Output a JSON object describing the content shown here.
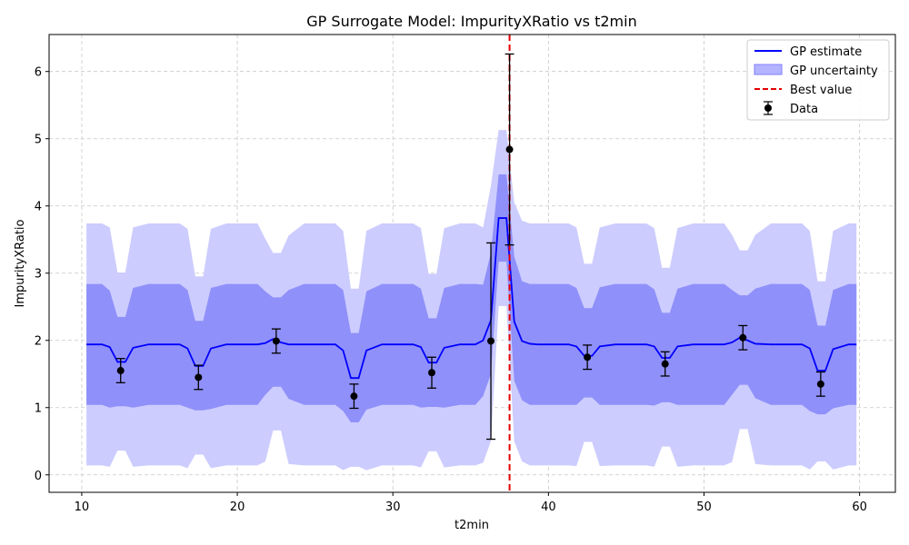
{
  "chart_data": {
    "type": "line",
    "title": "GP Surrogate Model: ImpurityXRatio vs t2min",
    "xlabel": "t2min",
    "ylabel": "ImpurityXRatio",
    "xlim": [
      7.9,
      62.3
    ],
    "ylim": [
      -0.26,
      6.55
    ],
    "xticks": [
      10,
      20,
      30,
      40,
      50,
      60
    ],
    "yticks": [
      0,
      1,
      2,
      3,
      4,
      5,
      6
    ],
    "grid": true,
    "legend_position": "top-right",
    "best_value_x": 37.5,
    "legend": [
      "GP estimate",
      "GP uncertainty",
      "Best value",
      "Data"
    ],
    "colors": {
      "estimate": "#0000ff",
      "band_outer": "#ccccff",
      "band_inner": "#9090fa",
      "best": "#e50000",
      "data": "#000000",
      "grid": "#c8c8c8"
    },
    "gp_x": [
      10.3,
      11.3,
      11.8,
      12.3,
      12.8,
      13.3,
      14.3,
      15.3,
      16.3,
      16.8,
      17.3,
      17.8,
      18.3,
      19.3,
      20.3,
      21.3,
      21.8,
      22.3,
      22.8,
      23.3,
      24.3,
      25.3,
      26.3,
      26.8,
      27.3,
      27.8,
      28.3,
      29.3,
      30.3,
      31.3,
      31.8,
      32.3,
      32.8,
      33.3,
      34.3,
      35.3,
      35.8,
      36.3,
      36.8,
      37.3,
      37.8,
      38.3,
      38.8,
      39.3,
      40.3,
      41.3,
      41.8,
      42.3,
      42.8,
      43.3,
      44.3,
      45.3,
      46.3,
      46.8,
      47.3,
      47.8,
      48.3,
      49.3,
      50.3,
      51.3,
      51.8,
      52.3,
      52.8,
      53.3,
      54.3,
      55.3,
      56.3,
      56.8,
      57.3,
      57.8,
      58.3,
      59.3,
      59.8
    ],
    "gp_mean": [
      1.94,
      1.94,
      1.9,
      1.68,
      1.68,
      1.89,
      1.94,
      1.94,
      1.94,
      1.88,
      1.62,
      1.62,
      1.88,
      1.94,
      1.94,
      1.94,
      1.96,
      2.02,
      1.97,
      1.94,
      1.94,
      1.94,
      1.94,
      1.85,
      1.44,
      1.44,
      1.85,
      1.94,
      1.94,
      1.94,
      1.9,
      1.67,
      1.67,
      1.89,
      1.94,
      1.94,
      2.0,
      2.3,
      3.82,
      3.82,
      2.28,
      1.99,
      1.95,
      1.94,
      1.94,
      1.94,
      1.91,
      1.77,
      1.77,
      1.91,
      1.94,
      1.94,
      1.94,
      1.91,
      1.74,
      1.74,
      1.91,
      1.94,
      1.94,
      1.94,
      1.97,
      2.04,
      2.0,
      1.95,
      1.94,
      1.94,
      1.94,
      1.88,
      1.55,
      1.55,
      1.87,
      1.94,
      1.94
    ],
    "gp_inner_upper": [
      2.84,
      2.84,
      2.74,
      2.35,
      2.35,
      2.78,
      2.84,
      2.84,
      2.84,
      2.75,
      2.29,
      2.29,
      2.78,
      2.84,
      2.84,
      2.84,
      2.73,
      2.64,
      2.64,
      2.75,
      2.84,
      2.84,
      2.84,
      2.75,
      2.11,
      2.11,
      2.73,
      2.84,
      2.84,
      2.84,
      2.77,
      2.33,
      2.33,
      2.78,
      2.84,
      2.84,
      2.83,
      3.3,
      4.47,
      4.47,
      3.25,
      2.88,
      2.84,
      2.84,
      2.84,
      2.84,
      2.78,
      2.48,
      2.48,
      2.79,
      2.84,
      2.84,
      2.84,
      2.76,
      2.41,
      2.41,
      2.77,
      2.84,
      2.84,
      2.84,
      2.75,
      2.67,
      2.67,
      2.77,
      2.84,
      2.84,
      2.84,
      2.75,
      2.22,
      2.22,
      2.75,
      2.84,
      2.84
    ],
    "gp_inner_lower": [
      1.04,
      1.04,
      1.0,
      1.02,
      1.02,
      1.0,
      1.04,
      1.04,
      1.04,
      1.0,
      0.96,
      0.96,
      0.98,
      1.04,
      1.04,
      1.04,
      1.19,
      1.31,
      1.31,
      1.13,
      1.04,
      1.04,
      1.04,
      0.95,
      0.78,
      0.78,
      0.97,
      1.04,
      1.04,
      1.04,
      1.0,
      1.01,
      1.01,
      1.0,
      1.04,
      1.04,
      1.17,
      1.5,
      3.17,
      3.17,
      1.4,
      1.11,
      1.04,
      1.04,
      1.04,
      1.04,
      1.04,
      1.15,
      1.15,
      1.04,
      1.04,
      1.04,
      1.04,
      1.03,
      1.08,
      1.08,
      1.04,
      1.04,
      1.04,
      1.04,
      1.19,
      1.34,
      1.34,
      1.14,
      1.04,
      1.04,
      1.04,
      0.95,
      0.9,
      0.9,
      0.99,
      1.04,
      1.04
    ],
    "gp_outer_upper": [
      3.74,
      3.74,
      3.68,
      3.01,
      3.01,
      3.68,
      3.74,
      3.74,
      3.74,
      3.66,
      2.95,
      2.95,
      3.66,
      3.74,
      3.74,
      3.74,
      3.51,
      3.3,
      3.3,
      3.56,
      3.74,
      3.74,
      3.74,
      3.63,
      2.77,
      2.77,
      3.63,
      3.74,
      3.74,
      3.74,
      3.67,
      2.99,
      2.99,
      3.67,
      3.74,
      3.74,
      3.68,
      4.3,
      5.13,
      5.13,
      4.05,
      3.78,
      3.74,
      3.74,
      3.74,
      3.74,
      3.68,
      3.14,
      3.14,
      3.68,
      3.74,
      3.74,
      3.74,
      3.67,
      3.08,
      3.08,
      3.67,
      3.74,
      3.74,
      3.74,
      3.57,
      3.34,
      3.34,
      3.57,
      3.74,
      3.74,
      3.74,
      3.63,
      2.88,
      2.88,
      3.63,
      3.74,
      3.74
    ],
    "gp_outer_lower": [
      0.14,
      0.14,
      0.12,
      0.36,
      0.36,
      0.12,
      0.14,
      0.14,
      0.14,
      0.1,
      0.3,
      0.3,
      0.1,
      0.14,
      0.14,
      0.14,
      0.2,
      0.66,
      0.66,
      0.16,
      0.14,
      0.14,
      0.14,
      0.07,
      0.12,
      0.12,
      0.07,
      0.14,
      0.14,
      0.14,
      0.11,
      0.35,
      0.35,
      0.11,
      0.14,
      0.14,
      0.18,
      0.5,
      2.51,
      2.51,
      0.5,
      0.2,
      0.14,
      0.14,
      0.14,
      0.14,
      0.13,
      0.49,
      0.49,
      0.13,
      0.14,
      0.14,
      0.14,
      0.12,
      0.42,
      0.42,
      0.12,
      0.14,
      0.14,
      0.14,
      0.19,
      0.68,
      0.68,
      0.16,
      0.14,
      0.14,
      0.14,
      0.08,
      0.2,
      0.2,
      0.08,
      0.14,
      0.14
    ],
    "data_points": [
      {
        "x": 12.5,
        "y": 1.55,
        "err": 0.18
      },
      {
        "x": 17.5,
        "y": 1.45,
        "err": 0.18
      },
      {
        "x": 22.5,
        "y": 1.99,
        "err": 0.18
      },
      {
        "x": 27.5,
        "y": 1.17,
        "err": 0.18
      },
      {
        "x": 32.5,
        "y": 1.52,
        "err": 0.23
      },
      {
        "x": 36.3,
        "y": 1.99,
        "err": 1.46
      },
      {
        "x": 37.5,
        "y": 4.84,
        "err": 1.42
      },
      {
        "x": 42.5,
        "y": 1.75,
        "err": 0.18
      },
      {
        "x": 47.5,
        "y": 1.65,
        "err": 0.18
      },
      {
        "x": 52.5,
        "y": 2.04,
        "err": 0.18
      },
      {
        "x": 57.5,
        "y": 1.35,
        "err": 0.18
      }
    ]
  }
}
